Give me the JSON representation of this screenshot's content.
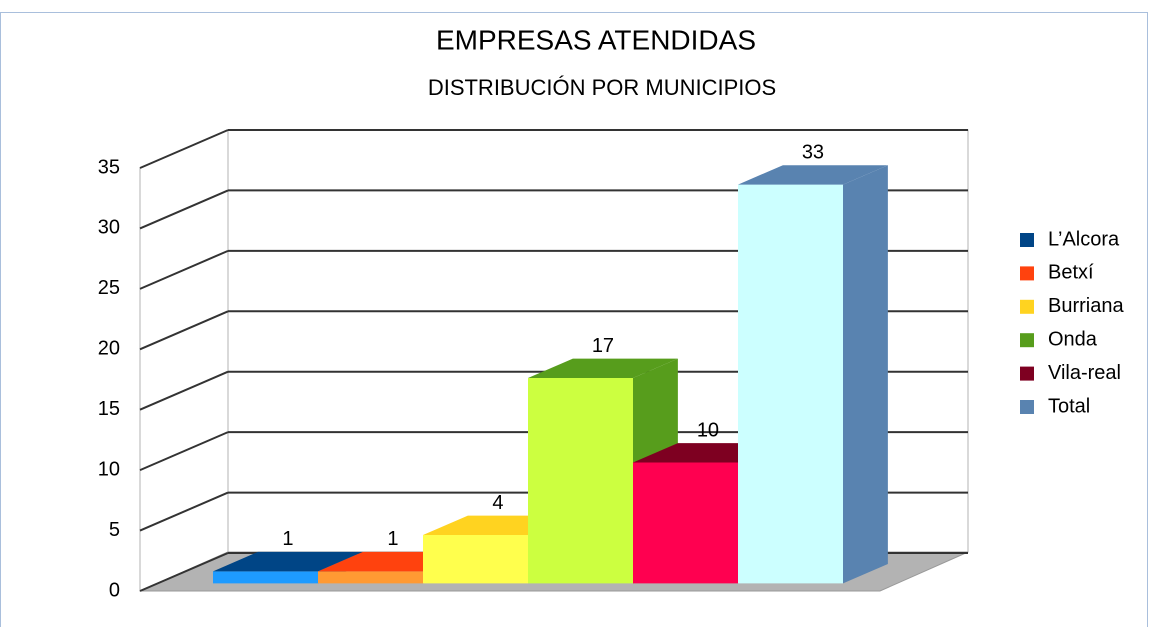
{
  "chart_data": {
    "type": "bar3d",
    "title": "EMPRESAS ATENDIDAS",
    "subtitle": "DISTRIBUCIÓN POR MUNICIPIOS",
    "series": [
      {
        "name": "L’Alcora",
        "color": "#004586",
        "front_color": "#1e9bff",
        "values": [
          1
        ]
      },
      {
        "name": "Betxí",
        "color": "#ff420e",
        "front_color": "#ff9a33",
        "values": [
          1
        ]
      },
      {
        "name": "Burriana",
        "color": "#ffd320",
        "front_color": "#ffff4d",
        "values": [
          4
        ]
      },
      {
        "name": "Onda",
        "color": "#579d1c",
        "front_color": "#ccff40",
        "values": [
          17
        ]
      },
      {
        "name": "Vila-real",
        "color": "#7e0021",
        "front_color": "#ff0050",
        "values": [
          10
        ]
      },
      {
        "name": "Total",
        "color": "#5983b0",
        "front_color": "#ccffff",
        "values": [
          33
        ]
      }
    ],
    "ylim": [
      0,
      35
    ],
    "yticks": [
      0,
      5,
      10,
      15,
      20,
      25,
      30,
      35
    ],
    "grid": true,
    "legend": "right"
  }
}
